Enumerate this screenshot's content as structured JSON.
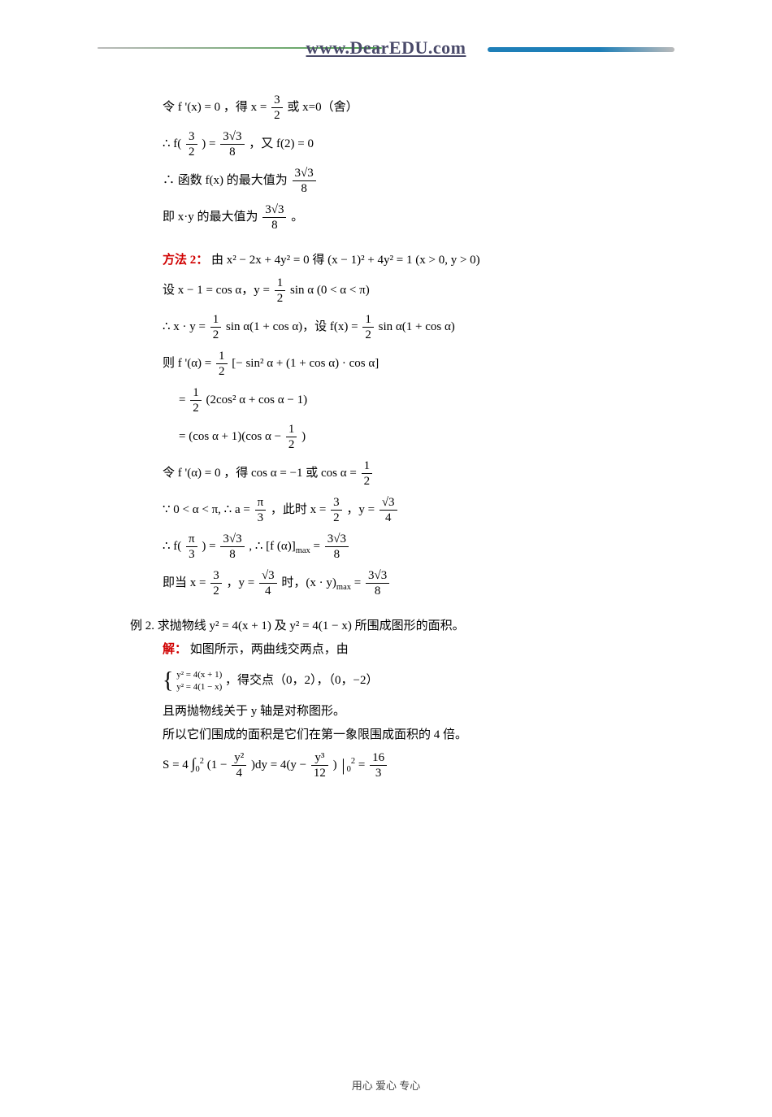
{
  "header": {
    "site": "www.DearEDU.com"
  },
  "lines": {
    "l1a": "令 f '(x) = 0 ，得 ",
    "l1b": " 或 x=0（舍）",
    "l2a": "∴ f(",
    "l2b": ") = ",
    "l2c": "，又 f(2) = 0",
    "l3a": "∴ 函数 f(x) 的最大值为 ",
    "l4a": "即 x·y 的最大值为 ",
    "l4b": "。",
    "m2_label": "方法 2：",
    "m2_text": "由 x² − 2x + 4y² = 0 得 (x − 1)² + 4y² = 1 (x > 0, y > 0)",
    "s1a": "设 x − 1 = cos α，y = ",
    "s1b": " sin α (0 < α < π)",
    "s2a": "∴ x · y = ",
    "s2b": " sin α(1 + cos α)，设 f(x) = ",
    "s2c": " sin α(1 + cos α)",
    "s3a": "则 f '(α) = ",
    "s3b": "[− sin² α + (1 + cos α) · cos α]",
    "s4a": "= ",
    "s4b": "(2cos² α + cos α − 1)",
    "s5": "= (cos α + 1)(cos α − ",
    "s5b": ")",
    "s6a": "令 f '(α) = 0 ，得 cos α = −1 或 cos α = ",
    "s7a": "∵ 0 < α < π, ∴ a = ",
    "s7b": "，此时 x = ",
    "s7c": "，y = ",
    "s8a": "∴ f(",
    "s8b": ") = ",
    "s8c": ", ∴ [f (α)]",
    "s8d": " = ",
    "s9a": "即当 x = ",
    "s9b": "，y = ",
    "s9c": " 时，(x · y)",
    "s9d": " = ",
    "ex2": "例 2. 求抛物线 y² = 4(x + 1) 及 y² = 4(1 − x) 所围成图形的面积。",
    "sol_label": "解：",
    "sol1": "如图所示，两曲线交两点，由",
    "sys1": "y² = 4(x + 1)",
    "sys2": "y² = 4(1 − x)",
    "sol2": "，得交点（0，2），（0，−2）",
    "sol3": "且两抛物线关于 y 轴是对称图形。",
    "sol4": "所以它们围成的面积是它们在第一象限围成面积的 4 倍。",
    "int1a": "S = 4 ",
    "int1b": "(1 − ",
    "int1c": ")dy = 4(y − ",
    "int1d": ")",
    "int1e": " = ",
    "frac_3_2_n": "3",
    "frac_3_2_d": "2",
    "frac_3r3_8_n": "3√3",
    "frac_3r3_8_d": "8",
    "frac_1_2_n": "1",
    "frac_1_2_d": "2",
    "frac_pi_3_n": "π",
    "frac_pi_3_d": "3",
    "frac_r3_4_n": "√3",
    "frac_r3_4_d": "4",
    "frac_y2_4_n": "y²",
    "frac_y2_4_d": "4",
    "frac_y3_12_n": "y³",
    "frac_y3_12_d": "12",
    "frac_16_3_n": "16",
    "frac_16_3_d": "3",
    "max_sub": "max",
    "int_lo": "0",
    "int_hi": "2",
    "eq_x": "x = "
  },
  "footer": "用心 爱心 专心"
}
